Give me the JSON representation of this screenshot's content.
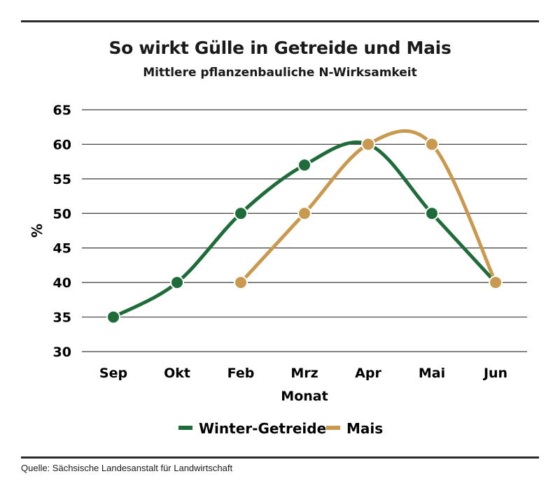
{
  "header": {
    "title": "So wirkt Gülle in Getreide und Mais",
    "subtitle": "Mittlere pflanzenbauliche N-Wirksamkeit"
  },
  "footer": {
    "source": "Quelle: Sächsische Landesanstalt für Landwirtschaft"
  },
  "chart_data": {
    "type": "line",
    "categories": [
      "Sep",
      "Okt",
      "Feb",
      "Mrz",
      "Apr",
      "Mai",
      "Jun"
    ],
    "xlabel": "Monat",
    "ylabel": "%",
    "ylim": [
      30,
      65
    ],
    "yticks": [
      30,
      35,
      40,
      45,
      50,
      55,
      60,
      65
    ],
    "grid": true,
    "legend": "bottom",
    "series": [
      {
        "name": "Winter-Getreide",
        "color": "#1f6b3a",
        "values": [
          35,
          40,
          50,
          57,
          60,
          50,
          40
        ]
      },
      {
        "name": "Mais",
        "color": "#c9994f",
        "values": [
          null,
          null,
          40,
          50,
          60,
          60,
          40
        ]
      }
    ]
  }
}
